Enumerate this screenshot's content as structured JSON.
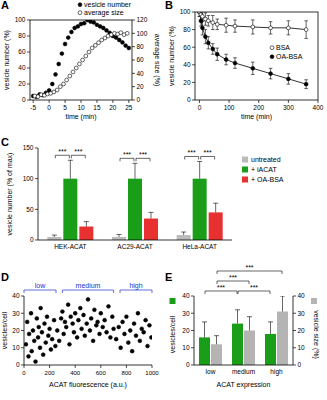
{
  "chart_data": [
    {
      "type": "scatter",
      "title": "A",
      "x_label": "time (min)",
      "y_label": "vesicle number (%)",
      "y2_label": "average size (%)",
      "xlim": [
        -6,
        26
      ],
      "xticks": [
        -5,
        0,
        5,
        10,
        15,
        20,
        25
      ],
      "ylim": [
        0,
        100
      ],
      "yticks": [
        0,
        20,
        40,
        60,
        80,
        100
      ],
      "y2lim": [
        0,
        120
      ],
      "y2ticks": [
        0,
        20,
        40,
        60,
        80,
        100,
        120
      ],
      "legend": "top right",
      "series": [
        {
          "name": "vesicle number",
          "color": "#000000",
          "marker": "filled_circle",
          "x": [
            -5,
            -4,
            -3,
            -2,
            -1,
            0,
            1,
            2,
            3,
            4,
            5,
            6,
            7,
            8,
            9,
            10,
            11,
            12,
            13,
            14,
            15,
            16,
            17,
            18,
            19,
            20,
            21,
            22,
            23,
            24,
            25
          ],
          "values": [
            5,
            4,
            7,
            6,
            9,
            12,
            20,
            32,
            45,
            58,
            70,
            78,
            85,
            90,
            92,
            95,
            96,
            100,
            98,
            97,
            94,
            92,
            90,
            87,
            84,
            80,
            78,
            75,
            72,
            68,
            65
          ]
        },
        {
          "name": "average size",
          "color": "#000000",
          "marker": "open_circle",
          "axis": "y2",
          "x": [
            -4.5,
            -3.5,
            -2.5,
            -1.5,
            -0.5,
            0.5,
            1.5,
            2.5,
            3.5,
            4.5,
            5.5,
            6.5,
            7.5,
            8.5,
            9.5,
            10.5,
            11.5,
            12.5,
            13.5,
            14.5,
            15.5,
            16.5,
            17.5,
            18.5,
            19.5,
            20.5,
            21.5,
            22.5,
            23.5,
            24.5
          ],
          "values": [
            6,
            5,
            8,
            7,
            9,
            10,
            12,
            15,
            20,
            24,
            30,
            36,
            42,
            48,
            54,
            60,
            66,
            72,
            78,
            82,
            86,
            90,
            93,
            96,
            98,
            100,
            99,
            101,
            98,
            100
          ]
        }
      ]
    },
    {
      "type": "line",
      "title": "B",
      "x_label": "time (min)",
      "y_label": "vesicle number (%)",
      "xlim": [
        -15,
        400
      ],
      "xticks": [
        0,
        100,
        200,
        300,
        400
      ],
      "ylim": [
        0,
        100
      ],
      "yticks": [
        0,
        20,
        40,
        60,
        80,
        100
      ],
      "legend": "center right",
      "x": [
        0,
        5,
        10,
        20,
        30,
        45,
        60,
        90,
        120,
        180,
        240,
        300,
        360
      ],
      "series": [
        {
          "name": "OA-BSA",
          "color": "#000000",
          "marker": "filled_circle",
          "values": [
            100,
            90,
            82,
            72,
            65,
            58,
            52,
            46,
            42,
            36,
            30,
            24,
            18
          ],
          "errors": [
            5,
            6,
            8,
            8,
            7,
            6,
            7,
            6,
            6,
            7,
            6,
            6,
            5
          ]
        },
        {
          "name": "BSA",
          "color": "#000000",
          "marker": "open_circle",
          "values": [
            100,
            97,
            95,
            92,
            90,
            88,
            86,
            85,
            84,
            83,
            82,
            82,
            80
          ],
          "errors": [
            5,
            8,
            6,
            7,
            6,
            8,
            6,
            8,
            7,
            8,
            7,
            8,
            10
          ]
        }
      ]
    },
    {
      "type": "bar",
      "title": "C",
      "y_label": "vesicle number (% of max)",
      "categories": [
        "HEK-ACAT",
        "AC29-ACAT",
        "HeLa-ACAT"
      ],
      "ylim": [
        0,
        150
      ],
      "yticks": [
        0,
        50,
        100,
        150
      ],
      "legend": "right",
      "annotations": [
        "***",
        "***",
        "***",
        "***",
        "***",
        "***"
      ],
      "series": [
        {
          "name": "untreated",
          "color": "#bbbbbb",
          "values": [
            5,
            5,
            8
          ],
          "errors": [
            3,
            4,
            5
          ]
        },
        {
          "name": "+ iACAT",
          "color": "#1a9e1a",
          "values": [
            100,
            100,
            100
          ],
          "errors": [
            30,
            25,
            28
          ]
        },
        {
          "name": "+ OA-BSA",
          "color": "#e83030",
          "values": [
            22,
            35,
            45
          ],
          "errors": [
            8,
            10,
            15
          ]
        }
      ]
    },
    {
      "type": "scatter",
      "title": "D",
      "x_label": "ACAT fluorescence (a.u.)",
      "y_label": "vesicles/cell",
      "xlim": [
        0,
        1000
      ],
      "xticks": [
        0,
        200,
        400,
        600,
        800,
        1000
      ],
      "ylim": [
        0,
        40
      ],
      "yticks": [
        0,
        10,
        20,
        30,
        40
      ],
      "color": "#000000",
      "marker": "filled_circle",
      "groups": [
        {
          "label": "low",
          "range": [
            0,
            250
          ]
        },
        {
          "label": "medium",
          "range": [
            300,
            700
          ]
        },
        {
          "label": "high",
          "range": [
            750,
            1000
          ]
        }
      ],
      "x": [
        15,
        25,
        35,
        40,
        55,
        60,
        70,
        80,
        90,
        100,
        110,
        115,
        125,
        130,
        140,
        150,
        160,
        170,
        180,
        190,
        200,
        210,
        220,
        235,
        245,
        260,
        275,
        290,
        300,
        310,
        320,
        330,
        345,
        355,
        365,
        380,
        390,
        400,
        415,
        425,
        440,
        450,
        465,
        475,
        490,
        500,
        515,
        525,
        540,
        550,
        565,
        575,
        590,
        600,
        615,
        630,
        645,
        660,
        675,
        690,
        700,
        720,
        740,
        755,
        770,
        785,
        800,
        815,
        830,
        845,
        860,
        875,
        890,
        905,
        920,
        935,
        950,
        965,
        980,
        995
      ],
      "values": [
        12,
        25,
        5,
        18,
        30,
        8,
        20,
        14,
        2,
        27,
        16,
        22,
        10,
        33,
        19,
        6,
        24,
        13,
        28,
        17,
        21,
        9,
        15,
        26,
        11,
        20,
        14,
        27,
        31,
        18,
        25,
        22,
        35,
        12,
        28,
        24,
        19,
        30,
        16,
        26,
        33,
        21,
        29,
        17,
        24,
        38,
        20,
        27,
        14,
        32,
        23,
        25,
        18,
        30,
        22,
        26,
        19,
        34,
        16,
        28,
        21,
        15,
        22,
        10,
        25,
        18,
        28,
        13,
        20,
        8,
        24,
        17,
        30,
        14,
        21,
        19,
        26,
        11,
        23,
        16
      ]
    },
    {
      "type": "bar",
      "title": "E",
      "x_label": "ACAT expression",
      "categories": [
        "low",
        "medium",
        "high"
      ],
      "ylim": [
        0,
        40
      ],
      "yticks": [
        0,
        10,
        20,
        30,
        40
      ],
      "y2lim": [
        0,
        40
      ],
      "y2ticks": [
        0,
        10,
        20,
        30,
        40
      ],
      "annotations": [
        "***",
        "***",
        "***",
        "***"
      ],
      "series": [
        {
          "name": "vesicles/cell",
          "color": "#1a9e1a",
          "values": [
            16,
            24,
            18
          ],
          "errors": [
            9,
            8,
            7
          ]
        },
        {
          "name": "vesicle size (%)",
          "color": "#b4b4b4",
          "axis": "y2",
          "values": [
            12,
            20,
            31
          ],
          "errors": [
            5,
            8,
            9
          ]
        }
      ]
    }
  ]
}
